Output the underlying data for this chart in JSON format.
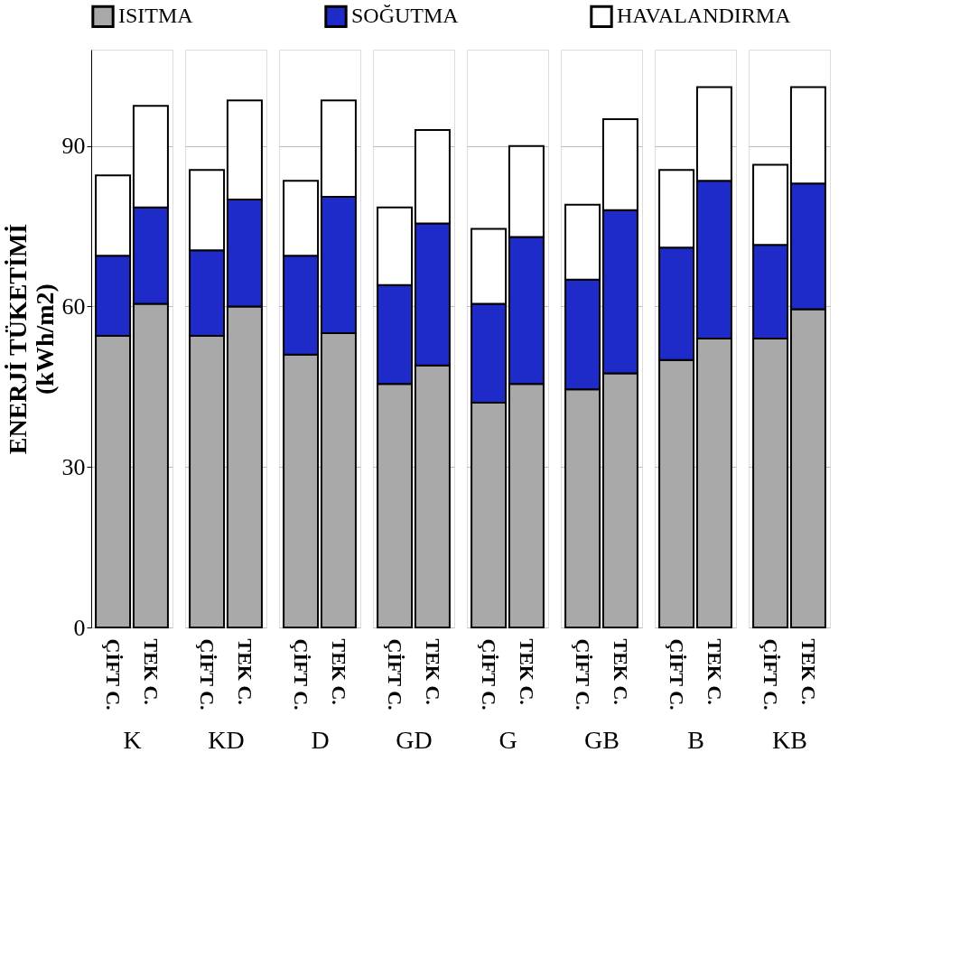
{
  "chart_data": [
    {
      "type": "bar",
      "stacked": true,
      "categories": [
        "ÇİFT C.",
        "TEK C."
      ],
      "xlabel": "K",
      "ylabel": "ENERJİ TÜKETİMİ\n(kWh/m2)",
      "ylim": [
        0,
        108
      ],
      "yticks": [
        0,
        30,
        60,
        90
      ],
      "grid": "y",
      "legend": "top",
      "series": [
        {
          "name": "ISITMA",
          "color": "#a9a9a9",
          "values": [
            54.5,
            60.5
          ]
        },
        {
          "name": "SOĞUTMA",
          "color": "#1f2bc8",
          "values": [
            15,
            18
          ]
        },
        {
          "name": "HAVALANDIRMA",
          "color": "#ffffff",
          "values": [
            15,
            19
          ]
        }
      ]
    },
    {
      "type": "bar",
      "stacked": true,
      "categories": [
        "ÇİFT C.",
        "TEK C."
      ],
      "xlabel": "KD",
      "ylim": [
        0,
        108
      ],
      "yticks": [
        0,
        30,
        60,
        90
      ],
      "grid": "y",
      "tick_labels": "x",
      "series": [
        {
          "name": "ISITMA",
          "color": "#a9a9a9",
          "values": [
            54.5,
            60
          ]
        },
        {
          "name": "SOĞUTMA",
          "color": "#1f2bc8",
          "values": [
            16,
            20
          ]
        },
        {
          "name": "HAVALANDIRMA",
          "color": "#ffffff",
          "values": [
            15,
            18.5
          ]
        }
      ]
    },
    {
      "type": "bar",
      "stacked": true,
      "categories": [
        "ÇİFT C.",
        "TEK C."
      ],
      "xlabel": "D",
      "ylim": [
        0,
        108
      ],
      "yticks": [
        0,
        30,
        60,
        90
      ],
      "grid": "y",
      "tick_labels": "x",
      "series": [
        {
          "name": "ISITMA",
          "color": "#a9a9a9",
          "values": [
            51,
            55
          ]
        },
        {
          "name": "SOĞUTMA",
          "color": "#1f2bc8",
          "values": [
            18.5,
            25.5
          ]
        },
        {
          "name": "HAVALANDIRMA",
          "color": "#ffffff",
          "values": [
            14,
            18
          ]
        }
      ]
    },
    {
      "type": "bar",
      "stacked": true,
      "categories": [
        "ÇİFT C.",
        "TEK C."
      ],
      "xlabel": "GD",
      "ylim": [
        0,
        108
      ],
      "yticks": [
        0,
        30,
        60,
        90
      ],
      "grid": "y",
      "tick_labels": "x",
      "series": [
        {
          "name": "ISITMA",
          "color": "#a9a9a9",
          "values": [
            45.5,
            49
          ]
        },
        {
          "name": "SOĞUTMA",
          "color": "#1f2bc8",
          "values": [
            18.5,
            26.5
          ]
        },
        {
          "name": "HAVALANDIRMA",
          "color": "#ffffff",
          "values": [
            14.5,
            17.5
          ]
        }
      ]
    },
    {
      "type": "bar",
      "stacked": true,
      "categories": [
        "ÇİFT C.",
        "TEK C."
      ],
      "xlabel": "G",
      "ylim": [
        0,
        108
      ],
      "yticks": [
        0,
        30,
        60,
        90
      ],
      "grid": "y",
      "tick_labels": "x",
      "series": [
        {
          "name": "ISITMA",
          "color": "#a9a9a9",
          "values": [
            42,
            45.5
          ]
        },
        {
          "name": "SOĞUTMA",
          "color": "#1f2bc8",
          "values": [
            18.5,
            27.5
          ]
        },
        {
          "name": "HAVALANDIRMA",
          "color": "#ffffff",
          "values": [
            14,
            17
          ]
        }
      ]
    },
    {
      "type": "bar",
      "stacked": true,
      "categories": [
        "ÇİFT C.",
        "TEK C."
      ],
      "xlabel": "GB",
      "ylim": [
        0,
        108
      ],
      "yticks": [
        0,
        30,
        60,
        90
      ],
      "grid": "y",
      "tick_labels": "x",
      "series": [
        {
          "name": "ISITMA",
          "color": "#a9a9a9",
          "values": [
            44.5,
            47.5
          ]
        },
        {
          "name": "SOĞUTMA",
          "color": "#1f2bc8",
          "values": [
            20.5,
            30.5
          ]
        },
        {
          "name": "HAVALANDIRMA",
          "color": "#ffffff",
          "values": [
            14,
            17
          ]
        }
      ]
    },
    {
      "type": "bar",
      "stacked": true,
      "categories": [
        "ÇİFT C.",
        "TEK C."
      ],
      "xlabel": "B",
      "ylim": [
        0,
        108
      ],
      "yticks": [
        0,
        30,
        60,
        90
      ],
      "grid": "y",
      "tick_labels": "x",
      "series": [
        {
          "name": "ISITMA",
          "color": "#a9a9a9",
          "values": [
            50,
            54
          ]
        },
        {
          "name": "SOĞUTMA",
          "color": "#1f2bc8",
          "values": [
            21,
            29.5
          ]
        },
        {
          "name": "HAVALANDIRMA",
          "color": "#ffffff",
          "values": [
            14.5,
            17.5
          ]
        }
      ]
    },
    {
      "type": "bar",
      "stacked": true,
      "categories": [
        "ÇİFT C.",
        "TEK C."
      ],
      "xlabel": "KB",
      "ylim": [
        0,
        108
      ],
      "yticks": [
        0,
        30,
        60,
        90
      ],
      "grid": "y",
      "tick_labels": "x",
      "series": [
        {
          "name": "ISITMA",
          "color": "#a9a9a9",
          "values": [
            54,
            59.5
          ]
        },
        {
          "name": "SOĞUTMA",
          "color": "#1f2bc8",
          "values": [
            17.5,
            23.5
          ]
        },
        {
          "name": "HAVALANDIRMA",
          "color": "#ffffff",
          "values": [
            15,
            18
          ]
        }
      ]
    }
  ]
}
